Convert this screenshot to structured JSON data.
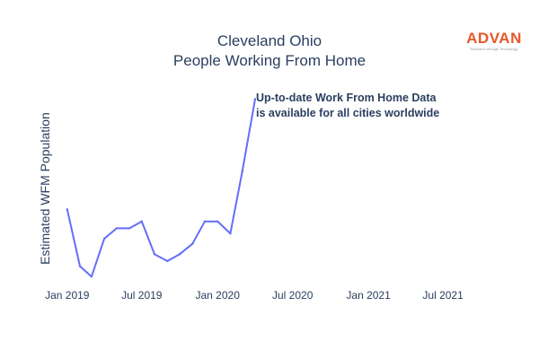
{
  "chart_data": {
    "type": "line",
    "title_lines": [
      "Cleveland Ohio",
      "People Working From Home"
    ],
    "xlabel": "",
    "ylabel": "Estimated WFM Population",
    "x_ticks": [
      "Jan 2019",
      "Jul 2019",
      "Jan 2020",
      "Jul 2020",
      "Jan 2021",
      "Jul 2021"
    ],
    "x_range": [
      "2018-12-15",
      "2021-09-15"
    ],
    "y_range": [
      0,
      100
    ],
    "y_scale_note": "no y tick labels shown; values relative 0-100",
    "grid": false,
    "legend": "none",
    "series": [
      {
        "color": "#636efa",
        "points": [
          {
            "x": "2019-01-01",
            "y": 41
          },
          {
            "x": "2019-02-01",
            "y": 8
          },
          {
            "x": "2019-03-01",
            "y": 2
          },
          {
            "x": "2019-04-01",
            "y": 24
          },
          {
            "x": "2019-05-01",
            "y": 30
          },
          {
            "x": "2019-06-01",
            "y": 30
          },
          {
            "x": "2019-07-01",
            "y": 34
          },
          {
            "x": "2019-08-01",
            "y": 15
          },
          {
            "x": "2019-09-01",
            "y": 11
          },
          {
            "x": "2019-10-01",
            "y": 15
          },
          {
            "x": "2019-11-01",
            "y": 21
          },
          {
            "x": "2019-12-01",
            "y": 34
          },
          {
            "x": "2020-01-01",
            "y": 34
          },
          {
            "x": "2020-02-01",
            "y": 27
          },
          {
            "x": "2020-03-01",
            "y": 63
          },
          {
            "x": "2020-04-01",
            "y": 105
          }
        ]
      }
    ],
    "annotation": {
      "lines": [
        "Up-to-date Work From Home Data",
        "is available for all cities worldwide"
      ],
      "anchor": {
        "x": "2020-04-01",
        "y": 105
      }
    }
  },
  "logo": {
    "word": "ADVAN",
    "tagline": "Research through Technology"
  },
  "colors": {
    "line": "#636efa",
    "text": "#2a3f5f",
    "logo": "#e8572a"
  }
}
